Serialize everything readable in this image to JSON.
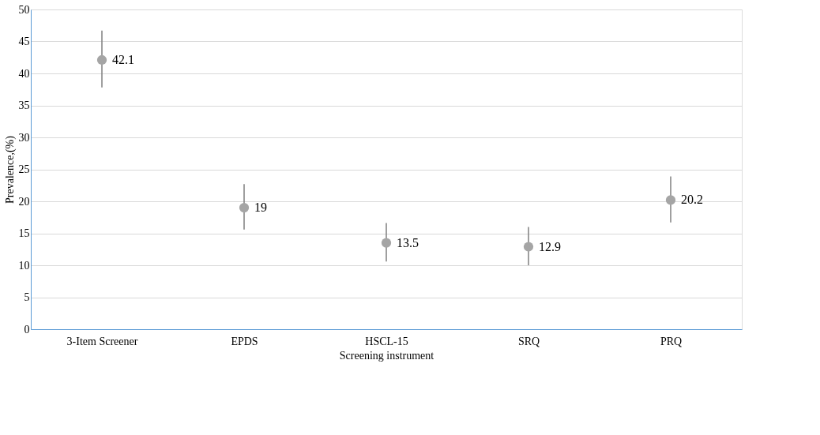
{
  "chart_data": {
    "type": "scatter",
    "xlabel": "Screening instrument",
    "ylabel": "Prevalence,(%)",
    "categories": [
      "3-Item Screener",
      "EPDS",
      "HSCL-15",
      "SRQ",
      "PRQ"
    ],
    "series": [
      {
        "color": "#a5a5a5",
        "values": [
          42.1,
          19,
          13.5,
          12.9,
          20.2
        ],
        "errors": [
          [
            37.8,
            46.7
          ],
          [
            15.6,
            22.7
          ],
          [
            10.6,
            16.6
          ],
          [
            10.0,
            16.0
          ],
          [
            16.7,
            23.9
          ]
        ]
      }
    ],
    "ylim": [
      0,
      50
    ],
    "yticks": [
      0,
      5,
      10,
      15,
      20,
      25,
      30,
      35,
      40,
      45,
      50
    ],
    "grid": "y",
    "marker": "circle",
    "data_labels": true
  }
}
